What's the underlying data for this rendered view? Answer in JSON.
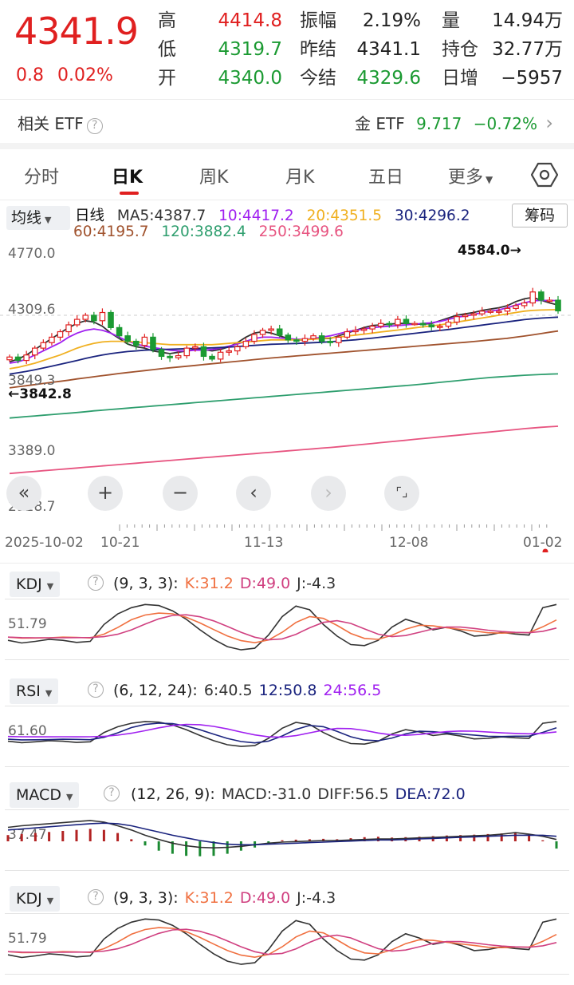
{
  "quote": {
    "price": "4341.9",
    "change": "0.8",
    "change_pct": "0.02%",
    "col1": [
      {
        "label": "高",
        "value": "4414.8",
        "color": "red"
      },
      {
        "label": "低",
        "value": "4319.7",
        "color": "green"
      },
      {
        "label": "开",
        "value": "4340.0",
        "color": "green"
      }
    ],
    "col2": [
      {
        "label": "振幅",
        "value": "2.19%",
        "color": "dark"
      },
      {
        "label": "昨结",
        "value": "4341.1",
        "color": "dark"
      },
      {
        "label": "今结",
        "value": "4329.6",
        "color": "green"
      }
    ],
    "col3": [
      {
        "label": "量",
        "value": "14.94万",
        "color": "dark"
      },
      {
        "label": "持仓",
        "value": "32.77万",
        "color": "dark"
      },
      {
        "label": "日增",
        "value": "−5957",
        "color": "dark"
      }
    ]
  },
  "etf": {
    "left_label": "相关 ETF",
    "right_label": "金 ETF",
    "right_price": "9.717",
    "right_change": "−0.72%",
    "arrow": "›"
  },
  "tabs": [
    "分时",
    "日K",
    "周K",
    "月K",
    "五日",
    "更多"
  ],
  "active_tab": 1,
  "ma_bar": {
    "selector": "均线",
    "line_name": "日线",
    "ma5": "MA5:4387.7",
    "ma10": "10:4417.2",
    "ma20": "20:4351.5",
    "ma30": "30:4296.2",
    "ma60": "60:4195.7",
    "ma120": "120:3882.4",
    "ma250": "250:3499.6",
    "chip_button": "筹码"
  },
  "colors": {
    "up": "#e02020",
    "down": "#1b9a32",
    "ma5": "#333333",
    "ma10": "#a020f0",
    "ma20": "#f0b020",
    "ma30": "#1a237e",
    "ma60": "#a0522d",
    "ma120": "#2e9e6e",
    "ma250": "#e75480",
    "k": "#f07040",
    "d": "#d04080",
    "j": "#333333",
    "rsi6": "#333333",
    "rsi12": "#1a237e",
    "rsi24": "#a020f0",
    "diff": "#333333",
    "dea": "#1a237e"
  },
  "chart_data": {
    "type": "candlestick",
    "y_ticks": [
      "4770.0",
      "4309.6",
      "3849.3",
      "3389.0",
      "2928.7"
    ],
    "ylim": [
      2928.7,
      4770.0
    ],
    "x_ticks": [
      "2025-10-02",
      "10-21",
      "11-13",
      "12-08",
      "01-02"
    ],
    "high_marker": "4584.0→",
    "low_marker": "←3842.8",
    "close_series": [
      4005,
      3980,
      4020,
      4070,
      4110,
      4150,
      4190,
      4240,
      4280,
      4310,
      4270,
      4330,
      4220,
      4160,
      4120,
      4090,
      4150,
      4060,
      4010,
      4000,
      4015,
      4070,
      4080,
      4010,
      3990,
      4040,
      4050,
      4080,
      4120,
      4170,
      4200,
      4210,
      4165,
      4130,
      4120,
      4140,
      4160,
      4120,
      4110,
      4150,
      4190,
      4200,
      4210,
      4230,
      4250,
      4240,
      4280,
      4250,
      4250,
      4240,
      4225,
      4230,
      4260,
      4300,
      4310,
      4320,
      4340,
      4340,
      4340,
      4360,
      4380,
      4400,
      4480,
      4420,
      4420,
      4342
    ],
    "ma_series": [
      {
        "name": "MA5",
        "values": [
          3970,
          3990,
          4020,
          4060,
          4100,
          4140,
          4180,
          4220,
          4250,
          4270,
          4260,
          4230,
          4180,
          4140,
          4100,
          4080,
          4070,
          4050,
          4040,
          4030,
          4040,
          4050,
          4060,
          4060,
          4050,
          4060,
          4080,
          4110,
          4150,
          4180,
          4190,
          4180,
          4160,
          4140,
          4130,
          4130,
          4140,
          4140,
          4140,
          4160,
          4180,
          4200,
          4220,
          4235,
          4240,
          4245,
          4250,
          4250,
          4245,
          4245,
          4250,
          4270,
          4290,
          4310,
          4320,
          4330,
          4345,
          4355,
          4365,
          4380,
          4410,
          4430,
          4440,
          4420,
          4400,
          4385
        ]
      },
      {
        "name": "MA10",
        "values": [
          3960,
          3970,
          3990,
          4020,
          4050,
          4080,
          4110,
          4150,
          4180,
          4200,
          4210,
          4200,
          4180,
          4150,
          4120,
          4100,
          4085,
          4075,
          4065,
          4055,
          4050,
          4050,
          4055,
          4055,
          4060,
          4070,
          4085,
          4100,
          4120,
          4140,
          4150,
          4150,
          4145,
          4140,
          4135,
          4135,
          4140,
          4150,
          4160,
          4175,
          4190,
          4200,
          4210,
          4220,
          4225,
          4230,
          4235,
          4240,
          4245,
          4250,
          4255,
          4265,
          4280,
          4295,
          4305,
          4315,
          4330,
          4340,
          4350,
          4365,
          4385,
          4400,
          4415,
          4418,
          4418,
          4417
        ]
      },
      {
        "name": "MA20",
        "values": [
          3920,
          3930,
          3945,
          3960,
          3980,
          4000,
          4020,
          4045,
          4070,
          4090,
          4105,
          4115,
          4120,
          4120,
          4118,
          4115,
          4110,
          4105,
          4100,
          4095,
          4095,
          4095,
          4095,
          4095,
          4095,
          4100,
          4105,
          4110,
          4115,
          4120,
          4125,
          4130,
          4130,
          4130,
          4130,
          4132,
          4135,
          4140,
          4145,
          4150,
          4158,
          4165,
          4172,
          4180,
          4188,
          4195,
          4202,
          4210,
          4218,
          4225,
          4232,
          4240,
          4250,
          4260,
          4270,
          4280,
          4290,
          4300,
          4310,
          4320,
          4330,
          4340,
          4345,
          4348,
          4350,
          4351
        ]
      },
      {
        "name": "MA30",
        "values": [
          3880,
          3890,
          3900,
          3912,
          3925,
          3938,
          3952,
          3966,
          3980,
          3995,
          4008,
          4020,
          4030,
          4038,
          4045,
          4050,
          4055,
          4058,
          4060,
          4062,
          4064,
          4066,
          4068,
          4070,
          4072,
          4075,
          4078,
          4082,
          4086,
          4090,
          4094,
          4098,
          4100,
          4102,
          4104,
          4107,
          4110,
          4113,
          4117,
          4121,
          4126,
          4131,
          4137,
          4143,
          4150,
          4157,
          4164,
          4171,
          4178,
          4185,
          4192,
          4199,
          4206,
          4214,
          4222,
          4230,
          4238,
          4246,
          4254,
          4262,
          4270,
          4278,
          4284,
          4289,
          4293,
          4296
        ]
      },
      {
        "name": "MA60",
        "values": [
          3780,
          3788,
          3796,
          3804,
          3812,
          3820,
          3828,
          3836,
          3845,
          3853,
          3861,
          3869,
          3877,
          3885,
          3892,
          3899,
          3906,
          3913,
          3920,
          3926,
          3932,
          3938,
          3944,
          3950,
          3956,
          3962,
          3968,
          3974,
          3980,
          3986,
          3992,
          3998,
          4003,
          4008,
          4013,
          4018,
          4023,
          4028,
          4033,
          4038,
          4043,
          4048,
          4053,
          4058,
          4063,
          4068,
          4073,
          4078,
          4083,
          4088,
          4093,
          4098,
          4103,
          4108,
          4113,
          4118,
          4124,
          4130,
          4136,
          4142,
          4150,
          4158,
          4167,
          4176,
          4186,
          4195
        ]
      },
      {
        "name": "MA120",
        "values": [
          3560,
          3565,
          3570,
          3575,
          3580,
          3585,
          3590,
          3595,
          3600,
          3606,
          3612,
          3617,
          3622,
          3627,
          3632,
          3637,
          3642,
          3647,
          3652,
          3657,
          3662,
          3667,
          3672,
          3677,
          3682,
          3687,
          3692,
          3697,
          3702,
          3707,
          3712,
          3717,
          3722,
          3727,
          3732,
          3737,
          3742,
          3747,
          3752,
          3757,
          3762,
          3767,
          3772,
          3777,
          3782,
          3787,
          3792,
          3797,
          3802,
          3808,
          3814,
          3820,
          3826,
          3832,
          3838,
          3844,
          3850,
          3856,
          3860,
          3864,
          3868,
          3872,
          3875,
          3878,
          3880,
          3882
        ]
      },
      {
        "name": "MA250",
        "values": [
          3155,
          3160,
          3165,
          3170,
          3175,
          3180,
          3185,
          3190,
          3195,
          3200,
          3205,
          3210,
          3215,
          3220,
          3225,
          3230,
          3235,
          3240,
          3245,
          3250,
          3255,
          3260,
          3265,
          3270,
          3275,
          3280,
          3285,
          3290,
          3295,
          3300,
          3305,
          3310,
          3315,
          3320,
          3325,
          3330,
          3335,
          3340,
          3345,
          3350,
          3356,
          3362,
          3368,
          3374,
          3380,
          3386,
          3392,
          3398,
          3404,
          3410,
          3416,
          3422,
          3428,
          3434,
          3440,
          3446,
          3452,
          3458,
          3464,
          3470,
          3476,
          3482,
          3487,
          3492,
          3496,
          3500
        ]
      }
    ]
  },
  "controls": [
    "«",
    "+",
    "−",
    "‹",
    "›",
    "⌜⌟"
  ],
  "panels": [
    {
      "id": "kdj1",
      "selector": "KDJ",
      "params": "(9, 3, 3):",
      "values": [
        {
          "text": "K:31.2",
          "color": "k"
        },
        {
          "text": "D:49.0",
          "color": "d"
        },
        {
          "text": "J:-4.3",
          "color": "j"
        }
      ],
      "axis": "51.79"
    },
    {
      "id": "rsi",
      "selector": "RSI",
      "params": "(6, 12, 24):",
      "values": [
        {
          "text": "6:40.5",
          "color": "rsi6"
        },
        {
          "text": "12:50.8",
          "color": "rsi12"
        },
        {
          "text": "24:56.5",
          "color": "rsi24"
        }
      ],
      "axis": "61.60"
    },
    {
      "id": "macd",
      "selector": "MACD",
      "params": "(12, 26, 9):",
      "values": [
        {
          "text": "MACD:-31.0",
          "color": "j"
        },
        {
          "text": "DIFF:56.5",
          "color": "diff"
        },
        {
          "text": "DEA:72.0",
          "color": "dea"
        }
      ],
      "axis": "37.47"
    },
    {
      "id": "kdj2",
      "selector": "KDJ",
      "params": "(9, 3, 3):",
      "values": [
        {
          "text": "K:31.2",
          "color": "k"
        },
        {
          "text": "D:49.0",
          "color": "d"
        },
        {
          "text": "J:-4.3",
          "color": "j"
        }
      ],
      "axis": "51.79"
    }
  ]
}
